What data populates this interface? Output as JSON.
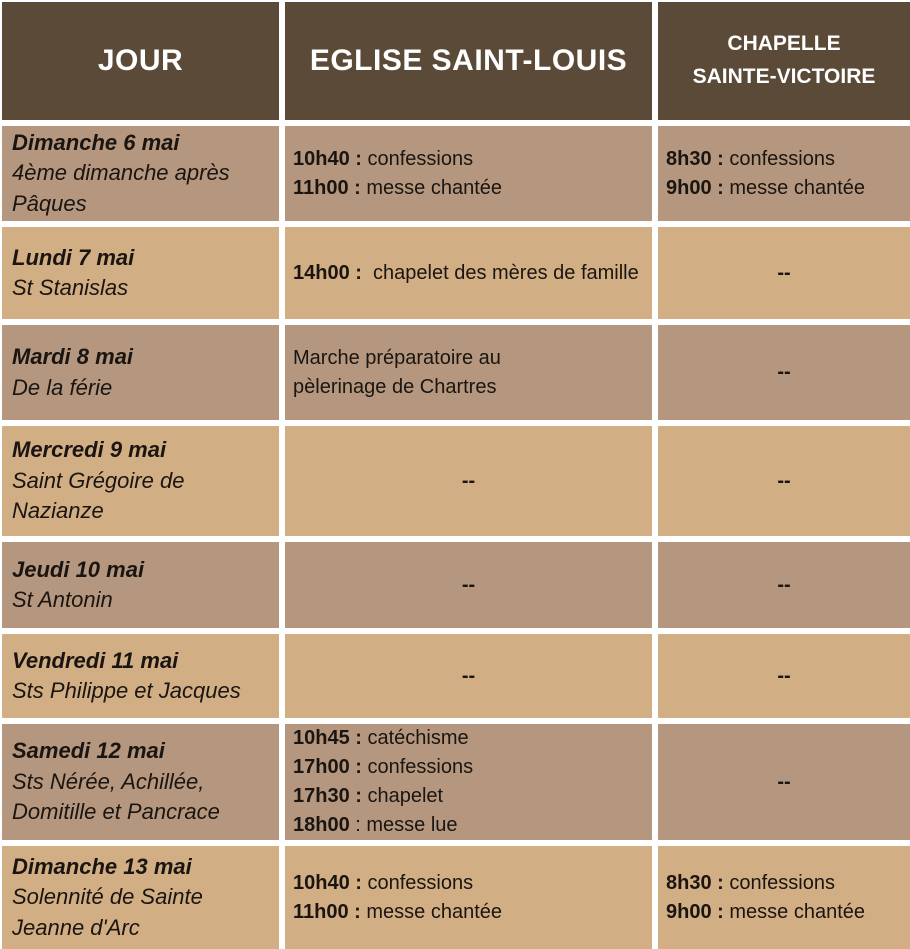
{
  "colors": {
    "header_bg": "#5a4a37",
    "header_text": "#ffffff",
    "row_dark_bg": "#b5977f",
    "row_light_bg": "#d2ae85",
    "body_text": "#1a1510",
    "divider": "#ffffff"
  },
  "header": {
    "col_day": "JOUR",
    "col_eglise": "EGLISE SAINT-LOUIS",
    "col_chapelle": "CHAPELLE SAINTE-VICTOIRE"
  },
  "rows": [
    {
      "day_title": "Dimanche 6 mai",
      "day_subtitle": "4ème dimanche après Pâques",
      "eglise_lines": [
        {
          "b": "10h40 :",
          "t": " confessions"
        },
        {
          "b": "11h00 :",
          "t": " messe chantée"
        }
      ],
      "chapelle_lines": [
        {
          "b": "8h30 :",
          "t": " confessions"
        },
        {
          "b": "9h00 :",
          "t": " messe chantée"
        }
      ]
    },
    {
      "day_title": "Lundi 7 mai",
      "day_subtitle": "St Stanislas",
      "eglise_lines": [
        {
          "b": "14h00 :",
          "t": "  chapelet des mères de famille"
        }
      ],
      "chapelle_dash": "--"
    },
    {
      "day_title": "Mardi 8 mai",
      "day_subtitle": "De la férie",
      "eglise_lines": [
        {
          "b": "",
          "t": "Marche préparatoire au"
        },
        {
          "b": "",
          "t": "pèlerinage de Chartres"
        }
      ],
      "chapelle_dash": "--"
    },
    {
      "day_title": "Mercredi 9 mai",
      "day_subtitle": "Saint Grégoire de Nazianze",
      "eglise_dash": "--",
      "chapelle_dash": "--"
    },
    {
      "day_title": "Jeudi 10 mai",
      "day_subtitle": "St Antonin",
      "eglise_dash": "--",
      "chapelle_dash": "--"
    },
    {
      "day_title": "Vendredi 11 mai",
      "day_subtitle": "Sts Philippe et Jacques",
      "eglise_dash": "--",
      "chapelle_dash": "--"
    },
    {
      "day_title": "Samedi 12 mai",
      "day_subtitle": "Sts Nérée, Achillée, Domitille et Pancrace",
      "eglise_lines": [
        {
          "b": "10h45 :",
          "t": " catéchisme"
        },
        {
          "b": "17h00 :",
          "t": " confessions"
        },
        {
          "b": "17h30 :",
          "t": " chapelet"
        },
        {
          "b": "18h00",
          "t": " : messe lue"
        }
      ],
      "chapelle_dash": "--"
    },
    {
      "day_title": "Dimanche 13 mai",
      "day_subtitle": "Solennité de Sainte Jeanne d'Arc",
      "eglise_lines": [
        {
          "b": "10h40 :",
          "t": " confessions"
        },
        {
          "b": "11h00 :",
          "t": " messe chantée"
        }
      ],
      "chapelle_lines": [
        {
          "b": "8h30 :",
          "t": " confessions"
        },
        {
          "b": "9h00 :",
          "t": " messe chantée"
        }
      ]
    }
  ]
}
